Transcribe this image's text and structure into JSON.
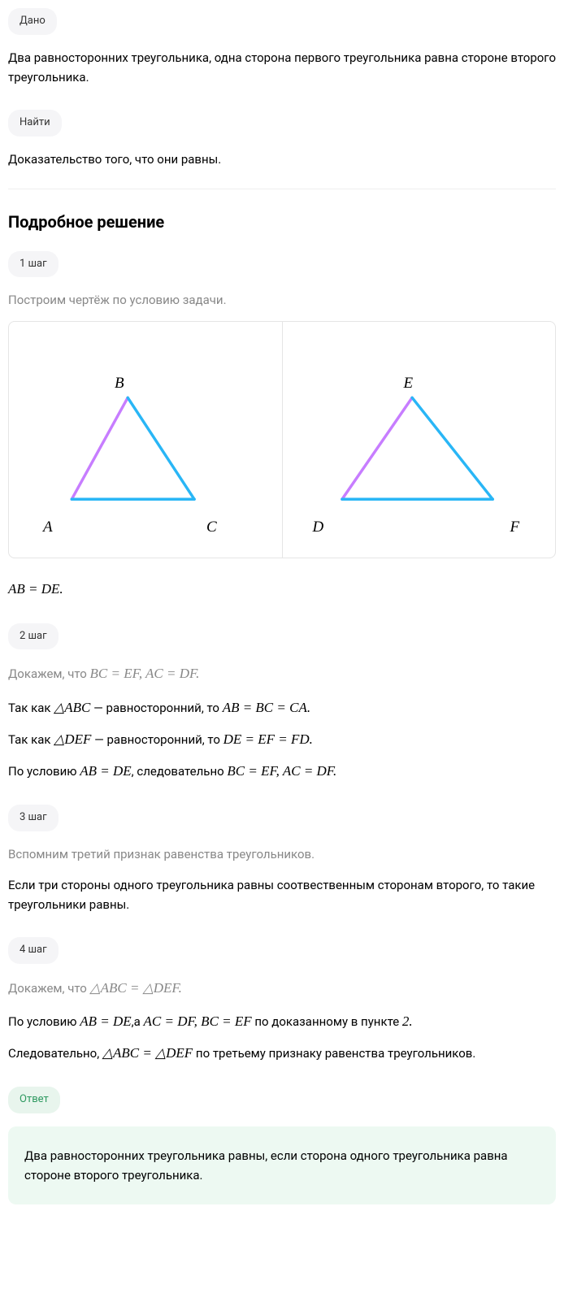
{
  "badges": {
    "given": "Дано",
    "find": "Найти",
    "step1": "1 шаг",
    "step2": "2 шаг",
    "step3": "3 шаг",
    "step4": "4 шаг",
    "answer": "Ответ"
  },
  "given_text": "Два равносторонних треугольника, одна сторона первого треугольника равна стороне второго треугольника.",
  "find_text": "Доказательство того, что они равны.",
  "solution_heading": "Подробное решение",
  "step1": {
    "intro": "Построим чертёж по условию задачи.",
    "eq": "AB = DE."
  },
  "step2": {
    "intro_prefix": "Докажем, что ",
    "intro_math": "BC = EF, AC = DF.",
    "l1_p1": "Так как ",
    "l1_math": "△ABC",
    "l1_p2": " — равносторонний, то ",
    "l1_math2": "AB = BC = CA.",
    "l2_p1": "Так как ",
    "l2_math": "△DEF",
    "l2_p2": " — равносторонний, то ",
    "l2_math2": "DE = EF = FD.",
    "l3_p1": "По условию ",
    "l3_math": "AB = DE",
    "l3_p2": ", следовательно ",
    "l3_math2": "BC = EF, AC = DF."
  },
  "step3": {
    "intro": "Вспомним третий признак равенства треугольников.",
    "text": "Если три стороны одного треугольника равны соотвественным сторонам второго, то такие треугольники равны."
  },
  "step4": {
    "intro_prefix": "Докажем, что ",
    "intro_math": "△ABC = △DEF.",
    "l1_p1": "По условию ",
    "l1_m1": "AB = DE",
    "l1_p2": ",а ",
    "l1_m2": "AC = DF, BC = EF",
    "l1_p3": " по доказанному в пункте ",
    "l1_m3": "2.",
    "l2_p1": "Следовательно, ",
    "l2_m1": "△ABC = △DEF",
    "l2_p2": " по третьему признаку равенства треугольников."
  },
  "answer_text": "Два равносторонних треугольника равны, если сторона одного треугольника равна стороне второго треугольника.",
  "diagram": {
    "triangle1": {
      "vertices": {
        "A": "A",
        "B": "B",
        "C": "C"
      },
      "points": {
        "A": [
          60,
          230
        ],
        "B": [
          140,
          85
        ],
        "C": [
          235,
          230
        ]
      },
      "side_colors": {
        "AB": "#c77dff",
        "BC": "#29b6f6",
        "CA": "#29b6f6"
      }
    },
    "triangle2": {
      "vertices": {
        "D": "D",
        "E": "E",
        "F": "F"
      },
      "points": {
        "D": [
          55,
          230
        ],
        "E": [
          155,
          85
        ],
        "F": [
          270,
          230
        ]
      },
      "side_colors": {
        "DE": "#c77dff",
        "EF": "#29b6f6",
        "FD": "#29b6f6"
      }
    },
    "stroke_width": 4,
    "label_offsets": {
      "A": [
        -18,
        8
      ],
      "B": [
        -10,
        -24
      ],
      "C": [
        8,
        8
      ],
      "D": [
        -18,
        8
      ],
      "E": [
        -6,
        -24
      ],
      "F": [
        10,
        8
      ]
    }
  },
  "colors": {
    "badge_bg": "#f5f5f7",
    "answer_badge_bg": "#e8f5ed",
    "answer_badge_fg": "#2e9960",
    "answer_box_bg": "#edf9f2",
    "border": "#e5e5e5",
    "gray_text": "#888888"
  }
}
